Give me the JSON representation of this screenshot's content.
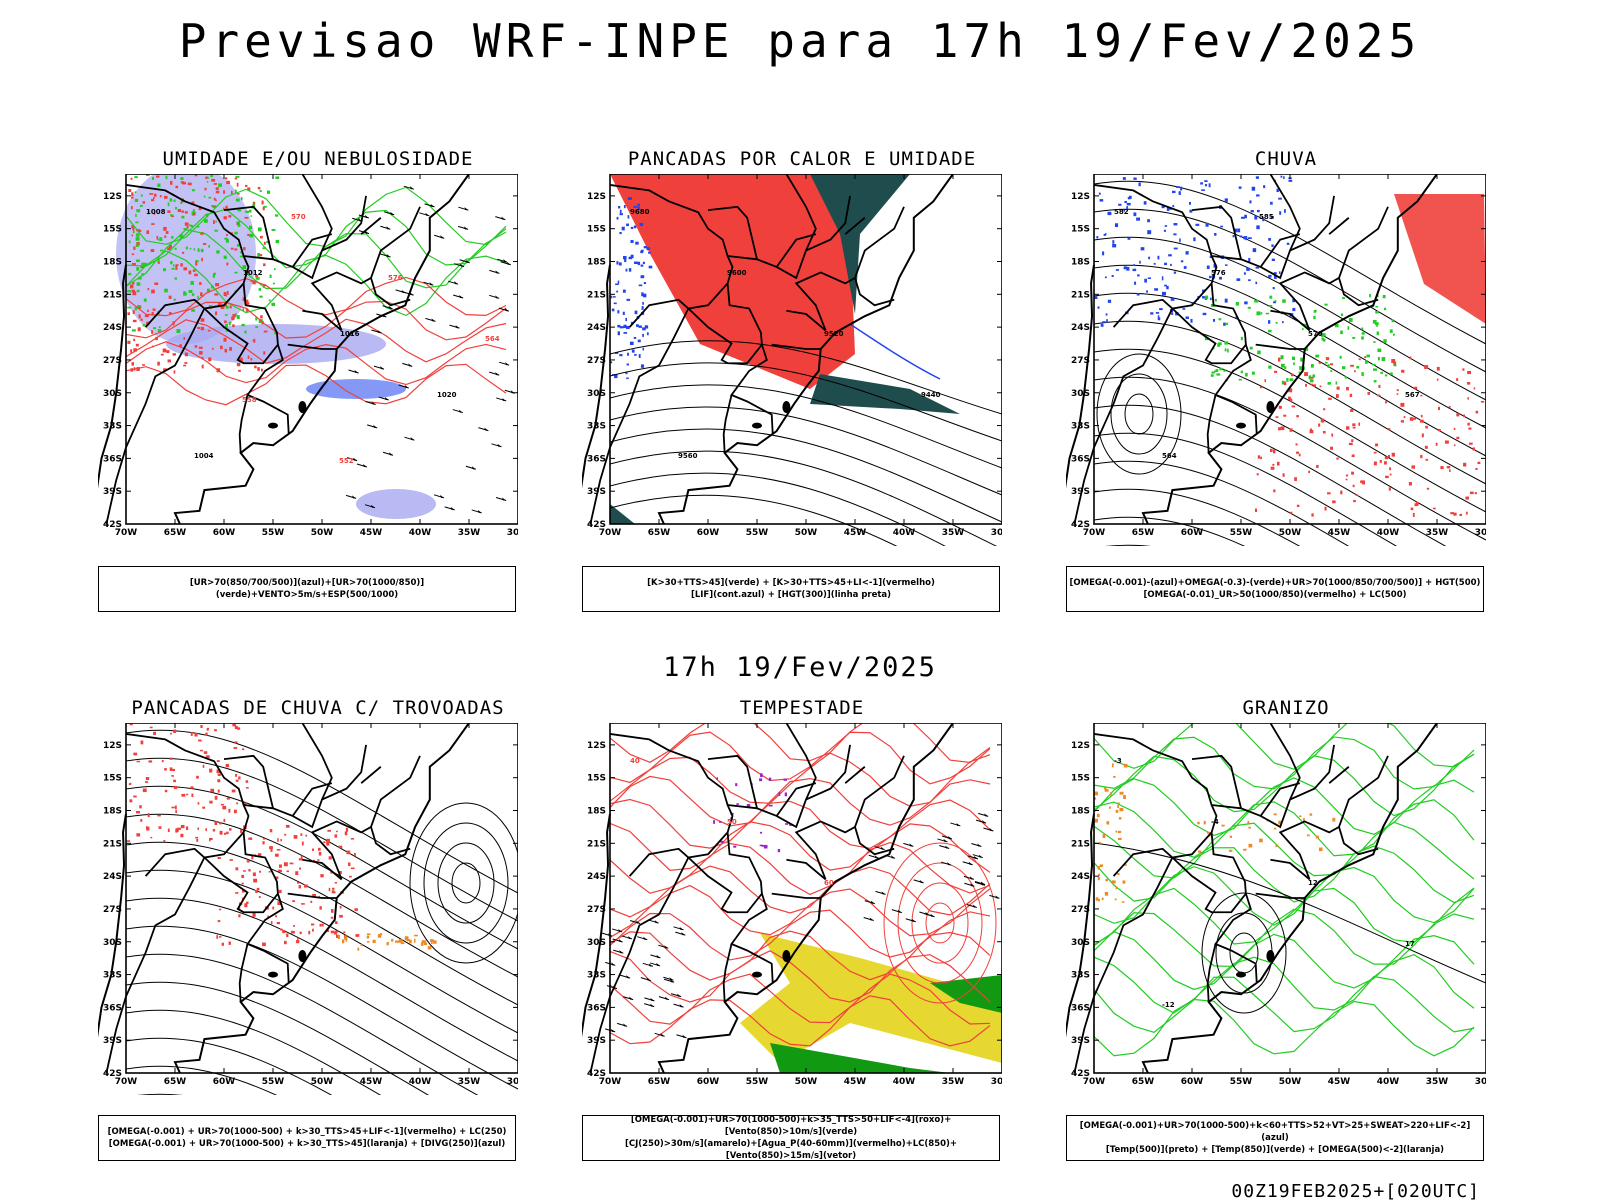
{
  "title": "Previsao WRF-INPE  para 17h 19/Fev/2025",
  "mid_title": "17h 19/Fev/2025",
  "footer": "00Z19FEB2025+[020UTC]",
  "axes": {
    "lat_labels": [
      "12S",
      "15S",
      "18S",
      "21S",
      "24S",
      "27S",
      "30S",
      "33S",
      "36S",
      "39S",
      "42S"
    ],
    "lon_labels": [
      "70W",
      "65W",
      "60W",
      "55W",
      "50W",
      "45W",
      "40W",
      "35W",
      "30W"
    ]
  },
  "colors": {
    "red": "#f0403c",
    "blue": "#2244ee",
    "green": "#22cc22",
    "lavender": "#a8a8f0",
    "teal": "#1f4d4d",
    "yellow": "#e6d830",
    "orange": "#f08a20",
    "contour": "#000000"
  },
  "panels": [
    {
      "title": "UMIDADE E/OU NEBULOSIDADE",
      "legend": [
        "[UR>70(850/700/500)](azul)+[UR>70(1000/850)](verde)+VENTO>5m/s+ESP(500/1000)"
      ],
      "labels": [
        "1008",
        "1012",
        "1016",
        "1020",
        "1004",
        "570",
        "576",
        "564",
        "558",
        "552"
      ]
    },
    {
      "title": "PANCADAS POR CALOR E UMIDADE",
      "legend": [
        "[K>30+TTS>45](verde) + [K>30+TTS>45+LI<-1](vermelho)",
        "[LIF](cont.azul) + [HGT(300)](linha preta)"
      ],
      "labels": [
        "9680",
        "9600",
        "9520",
        "9440",
        "9560"
      ]
    },
    {
      "title": "CHUVA",
      "legend": [
        "[OMEGA(-0.001)-(azul)+OMEGA(-0.3)-(verde)+UR>70(1000/850/700/500)] + HGT(500)",
        "[OMEGA(-0.01)_UR>50(1000/850)(vermelho) + LC(500)"
      ],
      "labels": [
        "582",
        "576",
        "570",
        "567",
        "564",
        "585"
      ]
    },
    {
      "title": "PANCADAS DE CHUVA C/ TROVOADAS",
      "legend": [
        "[OMEGA(-0.001) + UR>70(1000-500) + k>30_TTS>45+LIF<-1](vermelho) + LC(250)",
        "[OMEGA(-0.001) + UR>70(1000-500) + k>30_TTS>45](laranja) + [DIVG(250)](azul)"
      ],
      "labels": []
    },
    {
      "title": "TEMPESTADE",
      "legend": [
        "[OMEGA(-0.001)+UR>70(1000-500)+k>35_TTS>50+LIF<-4](roxo)+[Vento(850)>10m/s](verde)",
        "[CJ(250)>30m/s](amarelo)+[Agua_P(40-60mm)](vermelho)+LC(850)+[Vento(850)>15m/s](vetor)"
      ],
      "labels": [
        "40",
        "50",
        "60"
      ]
    },
    {
      "title": "GRANIZO",
      "legend": [
        "[OMEGA(-0.001)+UR>70(1000-500)+k<60+TTS>52+VT>25+SWEAT>220+LIF<-2](azul)",
        "[Temp(500)](preto) + [Temp(850)](verde) + [OMEGA(500)<-2](laranja)"
      ],
      "labels": [
        "-3",
        "-4",
        "12",
        "17",
        "-12"
      ]
    }
  ]
}
